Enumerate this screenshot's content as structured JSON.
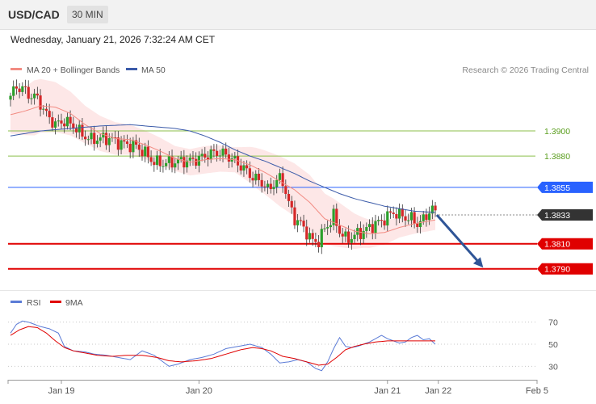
{
  "header": {
    "symbol": "USD/CAD",
    "timeframe": "30 MIN"
  },
  "datetime": "Wednesday, January 21, 2026 7:32:24 AM CET",
  "legend": {
    "ma20_label": "MA 20 + Bollinger Bands",
    "ma50_label": "MA 50",
    "copyright": "Research © 2026 Trading Central",
    "rsi_label": "RSI",
    "rsi_ma_label": "9MA"
  },
  "colors": {
    "up": "#2ca02c",
    "down": "#d62728",
    "ma20": "#f28b82",
    "ma50": "#3b5ba9",
    "band": "#fde4e4",
    "blue_level": "#2962ff",
    "red_level": "#e00000",
    "green_level": "#8bbf4a",
    "current": "#333333",
    "arrow": "#2f5597",
    "rsi": "#5b7bd6",
    "rsi_ma": "#e00000"
  },
  "chart_data": [
    {
      "type": "candlestick",
      "title": "",
      "ylim": [
        1.3775,
        1.394
      ],
      "x_ticks": [
        "Jan 19",
        "Jan 20",
        "Jan 21",
        "Jan 22",
        "Feb 5"
      ],
      "x_tick_positions": [
        0,
        63,
        126,
        143,
        176
      ],
      "last_price": 1.3833,
      "levels": [
        {
          "value": 1.39,
          "label": "1.3900",
          "kind": "green"
        },
        {
          "value": 1.388,
          "label": "1.3880",
          "kind": "green"
        },
        {
          "value": 1.3855,
          "label": "1.3855",
          "kind": "blue"
        },
        {
          "value": 1.3833,
          "label": "1.3833",
          "kind": "current"
        },
        {
          "value": 1.381,
          "label": "1.3810",
          "kind": "red"
        },
        {
          "value": 1.379,
          "label": "1.3790",
          "kind": "red"
        }
      ],
      "forecast_arrow": {
        "from": [
          142.5,
          1.3833
        ],
        "to": [
          158,
          1.3791
        ]
      },
      "ohlc_anchors": [
        [
          0,
          1.3928
        ],
        [
          2,
          1.3935
        ],
        [
          4,
          1.3934
        ],
        [
          6,
          1.3929
        ],
        [
          9,
          1.3926
        ],
        [
          12,
          1.3913
        ],
        [
          15,
          1.3905
        ],
        [
          18,
          1.3908
        ],
        [
          21,
          1.3904
        ],
        [
          24,
          1.3897
        ],
        [
          27,
          1.3893
        ],
        [
          30,
          1.3894
        ],
        [
          33,
          1.3894
        ],
        [
          36,
          1.3891
        ],
        [
          39,
          1.3889
        ],
        [
          42,
          1.3888
        ],
        [
          45,
          1.3882
        ],
        [
          48,
          1.3875
        ],
        [
          51,
          1.3874
        ],
        [
          54,
          1.3875
        ],
        [
          57,
          1.3876
        ],
        [
          60,
          1.3876
        ],
        [
          63,
          1.3878
        ],
        [
          66,
          1.3881
        ],
        [
          69,
          1.3883
        ],
        [
          72,
          1.3881
        ],
        [
          75,
          1.3876
        ],
        [
          78,
          1.387
        ],
        [
          81,
          1.3863
        ],
        [
          84,
          1.3859
        ],
        [
          86,
          1.3853
        ],
        [
          88,
          1.3858
        ],
        [
          90,
          1.3862
        ],
        [
          91,
          1.386
        ],
        [
          93,
          1.3842
        ],
        [
          95,
          1.383
        ],
        [
          97,
          1.3826
        ],
        [
          99,
          1.3819
        ],
        [
          101,
          1.3812
        ],
        [
          103,
          1.3812
        ],
        [
          105,
          1.3822
        ],
        [
          107,
          1.3828
        ],
        [
          108,
          1.3832
        ],
        [
          109,
          1.3826
        ],
        [
          110,
          1.382
        ],
        [
          112,
          1.3814
        ],
        [
          114,
          1.3815
        ],
        [
          116,
          1.3818
        ],
        [
          118,
          1.382
        ],
        [
          120,
          1.3823
        ],
        [
          122,
          1.3826
        ],
        [
          124,
          1.3828
        ],
        [
          126,
          1.3832
        ],
        [
          128,
          1.3835
        ],
        [
          130,
          1.3833
        ],
        [
          132,
          1.3831
        ],
        [
          134,
          1.383
        ],
        [
          136,
          1.3826
        ],
        [
          138,
          1.3829
        ],
        [
          140,
          1.3836
        ],
        [
          141,
          1.3838
        ],
        [
          142,
          1.3834
        ]
      ],
      "ma20_anchors": [
        [
          0,
          1.3913
        ],
        [
          5,
          1.3916
        ],
        [
          10,
          1.392
        ],
        [
          15,
          1.3919
        ],
        [
          20,
          1.3914
        ],
        [
          25,
          1.3905
        ],
        [
          30,
          1.3898
        ],
        [
          35,
          1.3894
        ],
        [
          40,
          1.3893
        ],
        [
          45,
          1.3889
        ],
        [
          50,
          1.3884
        ],
        [
          55,
          1.3878
        ],
        [
          60,
          1.3875
        ],
        [
          65,
          1.3877
        ],
        [
          70,
          1.3878
        ],
        [
          75,
          1.3877
        ],
        [
          80,
          1.3873
        ],
        [
          85,
          1.3867
        ],
        [
          90,
          1.386
        ],
        [
          95,
          1.3853
        ],
        [
          100,
          1.3843
        ],
        [
          105,
          1.383
        ],
        [
          110,
          1.3825
        ],
        [
          115,
          1.382
        ],
        [
          120,
          1.3818
        ],
        [
          125,
          1.3819
        ],
        [
          130,
          1.3823
        ],
        [
          135,
          1.3826
        ],
        [
          142,
          1.3829
        ]
      ],
      "ma50_anchors": [
        [
          0,
          1.3896
        ],
        [
          10,
          1.39
        ],
        [
          20,
          1.3902
        ],
        [
          30,
          1.3904
        ],
        [
          40,
          1.3905
        ],
        [
          50,
          1.3903
        ],
        [
          55,
          1.3902
        ],
        [
          60,
          1.39
        ],
        [
          65,
          1.3896
        ],
        [
          70,
          1.3891
        ],
        [
          75,
          1.3885
        ],
        [
          80,
          1.388
        ],
        [
          85,
          1.3876
        ],
        [
          90,
          1.3871
        ],
        [
          95,
          1.3866
        ],
        [
          100,
          1.386
        ],
        [
          105,
          1.3855
        ],
        [
          110,
          1.385
        ],
        [
          115,
          1.3846
        ],
        [
          120,
          1.3843
        ],
        [
          125,
          1.384
        ],
        [
          130,
          1.3838
        ],
        [
          135,
          1.3836
        ],
        [
          142,
          1.3835
        ]
      ],
      "band_width_anchors": [
        [
          0,
          0.0015
        ],
        [
          8,
          0.0022
        ],
        [
          15,
          0.002
        ],
        [
          25,
          0.0015
        ],
        [
          40,
          0.0012
        ],
        [
          55,
          0.001
        ],
        [
          65,
          0.0011
        ],
        [
          75,
          0.001
        ],
        [
          82,
          0.0016
        ],
        [
          90,
          0.002
        ],
        [
          100,
          0.0022
        ],
        [
          108,
          0.0019
        ],
        [
          118,
          0.0012
        ],
        [
          130,
          0.0008
        ],
        [
          142,
          0.0008
        ]
      ]
    },
    {
      "type": "line",
      "title": "RSI",
      "ylim": [
        20,
        80
      ],
      "y_ticks": [
        30,
        50,
        70
      ],
      "series": [
        {
          "name": "RSI",
          "anchors": [
            [
              0,
              60
            ],
            [
              2,
              68
            ],
            [
              4,
              71
            ],
            [
              6,
              70
            ],
            [
              8,
              68
            ],
            [
              10,
              66
            ],
            [
              13,
              64
            ],
            [
              16,
              60
            ],
            [
              18,
              48
            ],
            [
              21,
              44
            ],
            [
              25,
              43
            ],
            [
              28,
              41
            ],
            [
              32,
              40
            ],
            [
              36,
              38
            ],
            [
              40,
              36
            ],
            [
              44,
              44
            ],
            [
              48,
              40
            ],
            [
              50,
              36
            ],
            [
              53,
              30
            ],
            [
              56,
              32
            ],
            [
              60,
              36
            ],
            [
              64,
              38
            ],
            [
              68,
              41
            ],
            [
              72,
              46
            ],
            [
              76,
              48
            ],
            [
              80,
              50
            ],
            [
              84,
              47
            ],
            [
              87,
              41
            ],
            [
              90,
              33
            ],
            [
              93,
              34
            ],
            [
              96,
              36
            ],
            [
              99,
              34
            ],
            [
              102,
              28
            ],
            [
              104,
              26
            ],
            [
              106,
              34
            ],
            [
              108,
              46
            ],
            [
              110,
              56
            ],
            [
              112,
              48
            ],
            [
              114,
              47
            ],
            [
              116,
              48
            ],
            [
              118,
              50
            ],
            [
              120,
              52
            ],
            [
              122,
              55
            ],
            [
              124,
              58
            ],
            [
              126,
              55
            ],
            [
              128,
              53
            ],
            [
              130,
              51
            ],
            [
              132,
              52
            ],
            [
              134,
              56
            ],
            [
              136,
              58
            ],
            [
              138,
              54
            ],
            [
              140,
              55
            ],
            [
              142,
              50
            ]
          ]
        },
        {
          "name": "9MA",
          "anchors": [
            [
              0,
              58
            ],
            [
              3,
              63
            ],
            [
              6,
              66
            ],
            [
              9,
              65
            ],
            [
              12,
              60
            ],
            [
              15,
              53
            ],
            [
              18,
              47
            ],
            [
              21,
              44
            ],
            [
              25,
              42
            ],
            [
              29,
              40
            ],
            [
              34,
              39
            ],
            [
              39,
              40
            ],
            [
              44,
              40
            ],
            [
              49,
              38
            ],
            [
              53,
              35
            ],
            [
              57,
              34
            ],
            [
              62,
              35
            ],
            [
              67,
              37
            ],
            [
              72,
              41
            ],
            [
              77,
              45
            ],
            [
              81,
              47
            ],
            [
              84,
              46
            ],
            [
              87,
              44
            ],
            [
              91,
              39
            ],
            [
              95,
              37
            ],
            [
              99,
              34
            ],
            [
              103,
              31
            ],
            [
              106,
              32
            ],
            [
              109,
              38
            ],
            [
              112,
              45
            ],
            [
              115,
              48
            ],
            [
              118,
              50
            ],
            [
              122,
              52
            ],
            [
              126,
              53
            ],
            [
              130,
              53
            ],
            [
              134,
              53
            ],
            [
              138,
              53
            ],
            [
              142,
              53
            ]
          ]
        }
      ]
    }
  ]
}
